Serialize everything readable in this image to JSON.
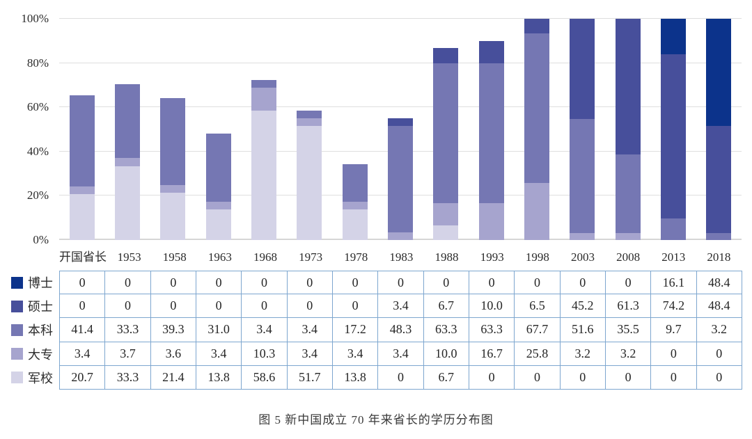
{
  "caption": "图 5 新中国成立 70 年来省长的学历分布图",
  "colors": {
    "doctor": "#0c338b",
    "master": "#474f9b",
    "bachelor": "#7577b3",
    "college": "#a6a4ce",
    "military": "#d4d3e7",
    "gridline": "#dedede",
    "table_border": "#7da6cf"
  },
  "chart_data": {
    "type": "bar",
    "stacked": true,
    "title": "图 5 新中国成立 70 年来省长的学历分布图",
    "categories": [
      "开国省长",
      "1953",
      "1958",
      "1963",
      "1968",
      "1973",
      "1978",
      "1983",
      "1988",
      "1993",
      "1998",
      "2003",
      "2008",
      "2013",
      "2018"
    ],
    "series": [
      {
        "name": "军校",
        "color": "#d4d3e7",
        "values": [
          20.7,
          33.3,
          21.4,
          13.8,
          58.6,
          51.7,
          13.8,
          0,
          6.7,
          0,
          0,
          0,
          0,
          0,
          0
        ]
      },
      {
        "name": "大专",
        "color": "#a6a4ce",
        "values": [
          3.4,
          3.7,
          3.6,
          3.4,
          10.3,
          3.4,
          3.4,
          3.4,
          10.0,
          16.7,
          25.8,
          3.2,
          3.2,
          0,
          0
        ]
      },
      {
        "name": "本科",
        "color": "#7577b3",
        "values": [
          41.4,
          33.3,
          39.3,
          31.0,
          3.4,
          3.4,
          17.2,
          48.3,
          63.3,
          63.3,
          67.7,
          51.6,
          35.5,
          9.7,
          3.2
        ]
      },
      {
        "name": "硕士",
        "color": "#474f9b",
        "values": [
          0,
          0,
          0,
          0,
          0,
          0,
          0,
          3.4,
          6.7,
          10.0,
          6.5,
          45.2,
          61.3,
          74.2,
          48.4
        ]
      },
      {
        "name": "博士",
        "color": "#0c338b",
        "values": [
          0,
          0,
          0,
          0,
          0,
          0,
          0,
          0,
          0,
          0,
          0,
          0,
          0,
          16.1,
          48.4
        ]
      }
    ],
    "ylim": [
      0,
      100
    ],
    "yticks": [
      {
        "value": 0,
        "label": "0%"
      },
      {
        "value": 20,
        "label": "20%"
      },
      {
        "value": 40,
        "label": "40%"
      },
      {
        "value": 60,
        "label": "60%"
      },
      {
        "value": 80,
        "label": "80%"
      },
      {
        "value": 100,
        "label": "100%"
      }
    ],
    "grid": true,
    "legend_position": "left-of-table"
  },
  "table": {
    "header": [
      "开国省长",
      "1953",
      "1958",
      "1963",
      "1968",
      "1973",
      "1978",
      "1983",
      "1988",
      "1993",
      "1998",
      "2003",
      "2008",
      "2013",
      "2018"
    ],
    "rows": [
      {
        "label": "博士",
        "color": "#0c338b",
        "values": [
          "0",
          "0",
          "0",
          "0",
          "0",
          "0",
          "0",
          "0",
          "0",
          "0",
          "0",
          "0",
          "0",
          "16.1",
          "48.4"
        ]
      },
      {
        "label": "硕士",
        "color": "#474f9b",
        "values": [
          "0",
          "0",
          "0",
          "0",
          "0",
          "0",
          "0",
          "3.4",
          "6.7",
          "10.0",
          "6.5",
          "45.2",
          "61.3",
          "74.2",
          "48.4"
        ]
      },
      {
        "label": "本科",
        "color": "#7577b3",
        "values": [
          "41.4",
          "33.3",
          "39.3",
          "31.0",
          "3.4",
          "3.4",
          "17.2",
          "48.3",
          "63.3",
          "63.3",
          "67.7",
          "51.6",
          "35.5",
          "9.7",
          "3.2"
        ]
      },
      {
        "label": "大专",
        "color": "#a6a4ce",
        "values": [
          "3.4",
          "3.7",
          "3.6",
          "3.4",
          "10.3",
          "3.4",
          "3.4",
          "3.4",
          "10.0",
          "16.7",
          "25.8",
          "3.2",
          "3.2",
          "0",
          "0"
        ]
      },
      {
        "label": "军校",
        "color": "#d4d3e7",
        "values": [
          "20.7",
          "33.3",
          "21.4",
          "13.8",
          "58.6",
          "51.7",
          "13.8",
          "0",
          "6.7",
          "0",
          "0",
          "0",
          "0",
          "0",
          "0"
        ]
      }
    ]
  }
}
